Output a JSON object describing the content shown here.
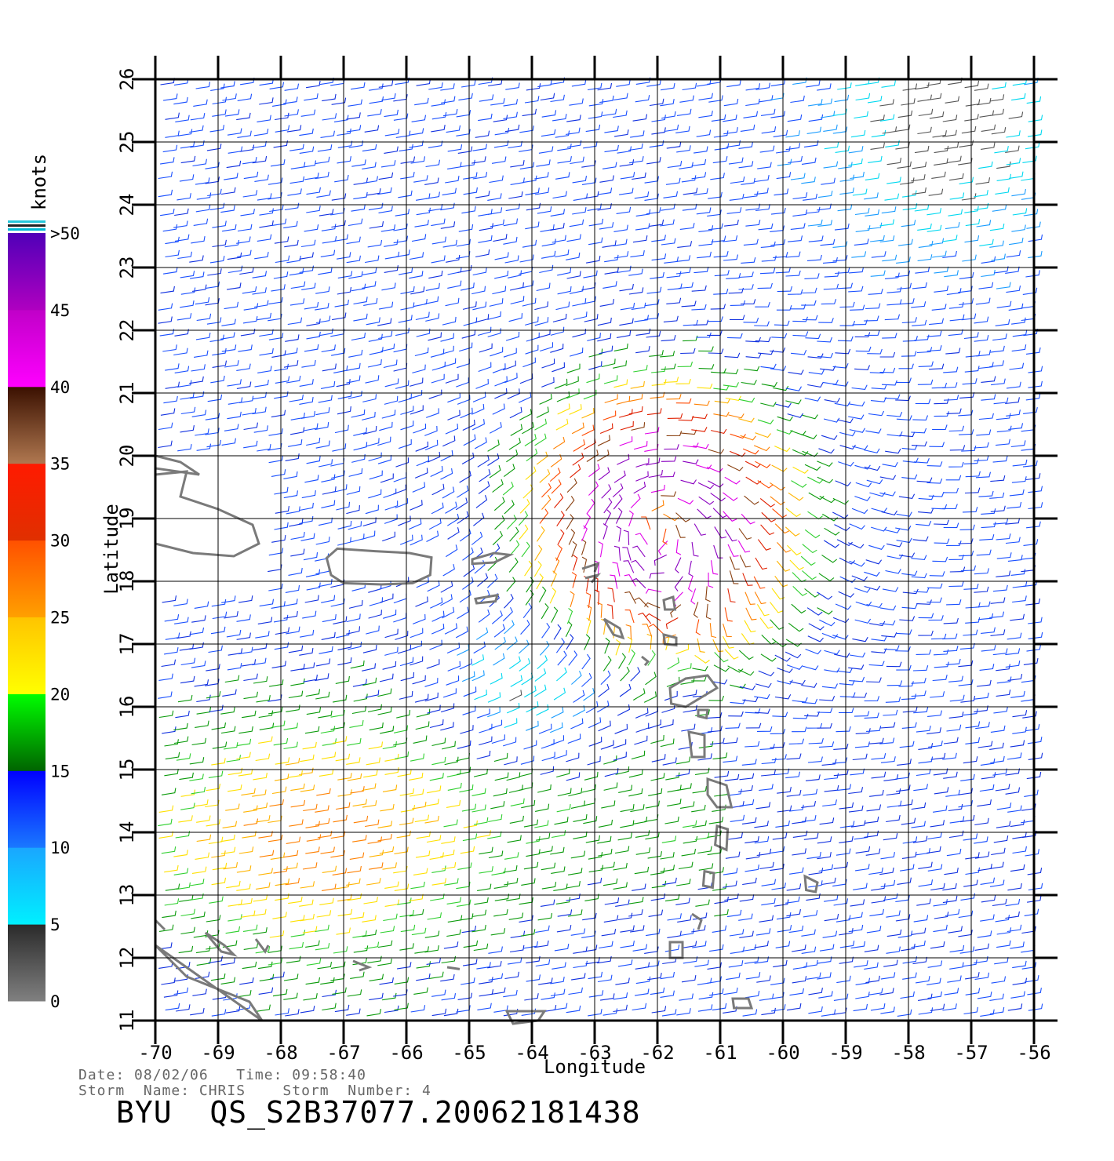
{
  "chart_data": {
    "type": "wind-barb-map",
    "xlabel": "Longitude",
    "ylabel": "Latitude",
    "x_ticks": [
      "-70",
      "-69",
      "-68",
      "-67",
      "-66",
      "-65",
      "-64",
      "-63",
      "-62",
      "-61",
      "-60",
      "-59",
      "-58",
      "-57",
      "-56"
    ],
    "y_ticks": [
      "11",
      "12",
      "13",
      "14",
      "15",
      "16",
      "17",
      "18",
      "19",
      "20",
      "21",
      "22",
      "23",
      "24",
      "25",
      "26"
    ],
    "xlim": [
      -70,
      -56
    ],
    "ylim": [
      11,
      26
    ],
    "grid": true,
    "colorbar": {
      "unit": "knots",
      "placement": "left",
      "labels": [
        "0",
        "5",
        "10",
        "15",
        "20",
        "25",
        "30",
        "35",
        "40",
        "45",
        ">50"
      ],
      "bands": [
        {
          "range": "0-5",
          "color_from": "#808080",
          "color_to": "#2a2a2a"
        },
        {
          "range": "5-10",
          "color_from": "#00f0ff",
          "color_to": "#1aa6ff"
        },
        {
          "range": "10-15",
          "color_from": "#1a78ff",
          "color_to": "#0000ff"
        },
        {
          "range": "15-20",
          "color_from": "#006400",
          "color_to": "#00ff00"
        },
        {
          "range": "20-25",
          "color_from": "#ffff00",
          "color_to": "#ffc400"
        },
        {
          "range": "25-30",
          "color_from": "#ffa000",
          "color_to": "#ff5000"
        },
        {
          "range": "30-35",
          "color_from": "#e03000",
          "color_to": "#ff1a00"
        },
        {
          "range": "35-40",
          "color_from": "#b07850",
          "color_to": "#3a1000"
        },
        {
          "range": "40-45",
          "color_from": "#ff00ff",
          "color_to": "#c000c8"
        },
        {
          "range": "45-50",
          "color_from": "#b000c0",
          "color_to": "#5000b8"
        }
      ]
    },
    "storm_center": {
      "lon": -62.0,
      "lat": 19.0
    },
    "max_wind_knots": 45
  },
  "footer": {
    "date_time": "Date: 08/02/06   Time: 09:58:40",
    "storm": "Storm  Name: CHRIS    Storm  Number: 4",
    "product": "BYU  QS_S2B37077.20062181438"
  }
}
